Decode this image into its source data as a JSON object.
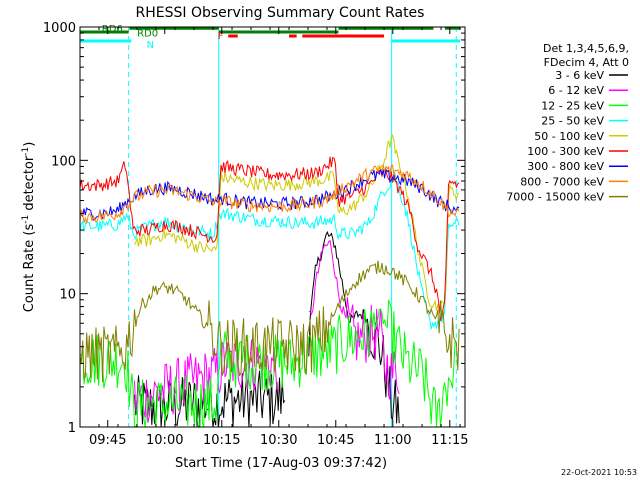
{
  "chart_data": {
    "type": "line",
    "title": "RHESSI Observing Summary Count Rates",
    "xlabel": "Start Time (17-Aug-03 09:37:42)",
    "ylabel_pre": "Count Rate (s",
    "ylabel_sup1": "-1",
    "ylabel_mid": " detector",
    "ylabel_sup2": "-1",
    "ylabel_post": ")",
    "timestamp": "22-Oct-2021 10:53",
    "x_unit": "minutes after 09:37:42",
    "xlim": [
      0,
      101.3
    ],
    "ylim": [
      1,
      1000
    ],
    "y_scale": "log",
    "x_ticks": [
      {
        "t": 7.3,
        "label": "09:45"
      },
      {
        "t": 22.3,
        "label": "10:00"
      },
      {
        "t": 37.3,
        "label": "10:15"
      },
      {
        "t": 52.3,
        "label": "10:30"
      },
      {
        "t": 67.3,
        "label": "10:45"
      },
      {
        "t": 82.3,
        "label": "11:00"
      },
      {
        "t": 97.3,
        "label": "11:15"
      }
    ],
    "y_ticks": [
      {
        "v": 1,
        "label": "1"
      },
      {
        "v": 10,
        "label": "10"
      },
      {
        "v": 100,
        "label": "100"
      },
      {
        "v": 1000,
        "label": "1000"
      }
    ],
    "legend": {
      "placement": "right",
      "header": [
        "Det 1,3,4,5,6,9,",
        "FDecim 4, Att 0"
      ]
    },
    "series": [
      {
        "name": "3 - 6 keV",
        "color": "#000000",
        "points": [
          [
            0,
            null
          ],
          [
            13.5,
            null
          ],
          [
            14,
            1.5
          ],
          [
            20,
            1.4
          ],
          [
            30,
            1.5
          ],
          [
            36,
            1.5
          ],
          [
            39,
            1.6
          ],
          [
            45,
            1.6
          ],
          [
            52,
            1.6
          ],
          [
            54,
            1.7
          ],
          [
            56,
            null
          ],
          [
            60,
            5
          ],
          [
            62,
            15
          ],
          [
            65,
            28
          ],
          [
            67,
            24
          ],
          [
            69,
            12
          ],
          [
            71,
            6
          ],
          [
            73,
            7
          ],
          [
            75,
            7
          ],
          [
            77,
            5
          ],
          [
            79,
            4
          ],
          [
            80,
            3
          ],
          [
            82,
            1.5
          ],
          [
            84,
            1.3
          ],
          [
            86,
            null
          ]
        ]
      },
      {
        "name": "6 - 12 keV",
        "color": "#ff00ff",
        "points": [
          [
            0,
            null
          ],
          [
            13.5,
            null
          ],
          [
            14,
            1.6
          ],
          [
            36,
            2.5
          ],
          [
            38,
            3
          ],
          [
            46,
            3
          ],
          [
            52,
            3
          ],
          [
            56,
            null
          ],
          [
            60,
            4
          ],
          [
            62,
            12
          ],
          [
            64,
            22
          ],
          [
            66,
            24
          ],
          [
            68,
            10
          ],
          [
            70,
            6
          ],
          [
            73,
            4.5
          ],
          [
            76,
            5
          ],
          [
            79,
            5
          ],
          [
            80,
            3
          ],
          [
            82,
            2.5
          ],
          [
            84,
            2.7
          ],
          [
            86,
            null
          ]
        ]
      },
      {
        "name": "12 - 25 keV",
        "color": "#00ff00",
        "points": [
          [
            0,
            3.2
          ],
          [
            12,
            3.2
          ],
          [
            14,
            1.4
          ],
          [
            24,
            1.5
          ],
          [
            36,
            1.5
          ],
          [
            37,
            3.5
          ],
          [
            40,
            3.2
          ],
          [
            56,
            3
          ],
          [
            60,
            3.5
          ],
          [
            64,
            3.5
          ],
          [
            70,
            4.5
          ],
          [
            76,
            5
          ],
          [
            79,
            7
          ],
          [
            82,
            5
          ],
          [
            86,
            3
          ],
          [
            90,
            2.5
          ],
          [
            94,
            1.1
          ],
          [
            96,
            2
          ],
          [
            99,
            3
          ]
        ]
      },
      {
        "name": "25 - 50 keV",
        "color": "#00ffff",
        "points": [
          [
            0,
            32
          ],
          [
            6,
            32
          ],
          [
            10,
            33
          ],
          [
            12,
            38
          ],
          [
            13,
            35
          ],
          [
            14,
            28
          ],
          [
            18,
            32
          ],
          [
            22,
            35
          ],
          [
            25,
            33
          ],
          [
            30,
            30
          ],
          [
            35,
            28
          ],
          [
            37,
            40
          ],
          [
            40,
            39
          ],
          [
            46,
            36
          ],
          [
            52,
            35
          ],
          [
            57,
            34
          ],
          [
            62,
            34
          ],
          [
            67,
            36
          ],
          [
            68,
            28
          ],
          [
            72,
            28
          ],
          [
            76,
            34
          ],
          [
            80,
            60
          ],
          [
            83,
            75
          ],
          [
            86,
            40
          ],
          [
            88,
            20
          ],
          [
            90,
            10
          ],
          [
            92,
            6
          ],
          [
            94,
            6
          ],
          [
            96,
            7
          ],
          [
            97,
            33
          ],
          [
            100,
            33
          ]
        ]
      },
      {
        "name": "50 - 100 keV",
        "color": "#cccc00",
        "points": [
          [
            14,
            25
          ],
          [
            18,
            25
          ],
          [
            22,
            28
          ],
          [
            26,
            26
          ],
          [
            32,
            22
          ],
          [
            36,
            21
          ],
          [
            37,
            75
          ],
          [
            42,
            70
          ],
          [
            50,
            65
          ],
          [
            56,
            66
          ],
          [
            62,
            70
          ],
          [
            67,
            75
          ],
          [
            68,
            40
          ],
          [
            72,
            45
          ],
          [
            76,
            60
          ],
          [
            80,
            100
          ],
          [
            82,
            150
          ],
          [
            84,
            90
          ],
          [
            86,
            60
          ],
          [
            88,
            30
          ],
          [
            90,
            15
          ],
          [
            92,
            9
          ],
          [
            94,
            8
          ],
          [
            96,
            8
          ],
          [
            97,
            60
          ],
          [
            100,
            55
          ]
        ]
      },
      {
        "name": "100 - 300 keV",
        "color": "#ff0000",
        "points": [
          [
            0,
            65
          ],
          [
            5,
            65
          ],
          [
            10,
            70
          ],
          [
            12,
            95
          ],
          [
            14,
            30
          ],
          [
            18,
            30
          ],
          [
            22,
            33
          ],
          [
            26,
            32
          ],
          [
            32,
            28
          ],
          [
            36,
            26
          ],
          [
            37,
            90
          ],
          [
            42,
            85
          ],
          [
            50,
            78
          ],
          [
            56,
            78
          ],
          [
            62,
            80
          ],
          [
            67,
            100
          ],
          [
            68,
            50
          ],
          [
            72,
            55
          ],
          [
            76,
            65
          ],
          [
            79,
            80
          ],
          [
            82,
            75
          ],
          [
            85,
            55
          ],
          [
            87,
            40
          ],
          [
            89,
            22
          ],
          [
            92,
            15
          ],
          [
            94,
            10
          ],
          [
            95,
            6
          ],
          [
            96,
            8
          ],
          [
            97,
            70
          ],
          [
            100,
            65
          ]
        ]
      },
      {
        "name": "300 - 800 keV",
        "color": "#0000ff",
        "points": [
          [
            0,
            40
          ],
          [
            6,
            40
          ],
          [
            10,
            42
          ],
          [
            12,
            48
          ],
          [
            14,
            53
          ],
          [
            18,
            60
          ],
          [
            22,
            62
          ],
          [
            26,
            60
          ],
          [
            32,
            54
          ],
          [
            36,
            50
          ],
          [
            37,
            52
          ],
          [
            44,
            48
          ],
          [
            52,
            47
          ],
          [
            58,
            48
          ],
          [
            64,
            52
          ],
          [
            67,
            55
          ],
          [
            68,
            58
          ],
          [
            72,
            65
          ],
          [
            76,
            75
          ],
          [
            79,
            78
          ],
          [
            82,
            75
          ],
          [
            86,
            70
          ],
          [
            90,
            62
          ],
          [
            94,
            50
          ],
          [
            97,
            45
          ],
          [
            100,
            40
          ]
        ]
      },
      {
        "name": "800 - 7000 keV",
        "color": "#ff8000",
        "points": [
          [
            0,
            38
          ],
          [
            6,
            38
          ],
          [
            10,
            40
          ],
          [
            12,
            46
          ],
          [
            14,
            52
          ],
          [
            18,
            58
          ],
          [
            22,
            60
          ],
          [
            26,
            58
          ],
          [
            32,
            52
          ],
          [
            36,
            48
          ],
          [
            37,
            50
          ],
          [
            44,
            46
          ],
          [
            52,
            45
          ],
          [
            58,
            46
          ],
          [
            64,
            50
          ],
          [
            67,
            55
          ],
          [
            68,
            60
          ],
          [
            72,
            68
          ],
          [
            76,
            80
          ],
          [
            79,
            85
          ],
          [
            82,
            85
          ],
          [
            86,
            78
          ],
          [
            90,
            65
          ],
          [
            94,
            52
          ],
          [
            97,
            42
          ],
          [
            100,
            38
          ]
        ]
      },
      {
        "name": "7000 - 15000 keV",
        "color": "#808000",
        "points": [
          [
            0,
            3.5
          ],
          [
            10,
            3.5
          ],
          [
            12,
            4
          ],
          [
            14,
            5.5
          ],
          [
            16,
            8
          ],
          [
            20,
            11
          ],
          [
            24,
            11
          ],
          [
            28,
            9
          ],
          [
            32,
            6.5
          ],
          [
            35,
            5
          ],
          [
            37,
            4
          ],
          [
            44,
            4
          ],
          [
            50,
            4
          ],
          [
            56,
            4
          ],
          [
            60,
            4
          ],
          [
            64,
            5
          ],
          [
            68,
            8
          ],
          [
            72,
            12
          ],
          [
            76,
            15
          ],
          [
            79,
            16
          ],
          [
            82,
            15
          ],
          [
            86,
            12
          ],
          [
            90,
            9
          ],
          [
            94,
            6
          ],
          [
            97,
            4.5
          ],
          [
            100,
            4
          ]
        ]
      }
    ],
    "vertical_lines": [
      {
        "t": 0,
        "style": "solid"
      },
      {
        "t": 12.8,
        "style": "dashed"
      },
      {
        "t": 36.5,
        "style": "solid"
      },
      {
        "t": 82,
        "style": "solid"
      },
      {
        "t": 99,
        "style": "dashed"
      }
    ],
    "status_bars": [
      {
        "color": "#00ffff",
        "level": 7,
        "segments": [
          [
            0,
            13.5
          ],
          [
            82,
            100
          ]
        ]
      },
      {
        "color": "#ff0000",
        "level": 4.5,
        "segments": [
          [
            39,
            41.5
          ],
          [
            55,
            57
          ],
          [
            58.5,
            80
          ]
        ]
      },
      {
        "color": "#008000",
        "level": 2.5,
        "segments": [
          [
            0,
            12.8
          ],
          [
            36.5,
            68
          ]
        ]
      },
      {
        "color": "#008000",
        "level": 0.6,
        "segments": [
          [
            13,
            36.5
          ],
          [
            68,
            93
          ],
          [
            96,
            100
          ]
        ]
      }
    ],
    "bar_labels": [
      {
        "text": "N",
        "t": 18.5,
        "level": 8.6,
        "color": "#00ffff"
      },
      {
        "text": "F",
        "t": 37,
        "level": 4.0,
        "color": "#ff0000"
      },
      {
        "text": "RD0",
        "t": 17.8,
        "level": 2.8,
        "color": "#008000"
      },
      {
        "text": "RD6",
        "t": 8.5,
        "level": 0.6,
        "color": "#008000"
      }
    ]
  }
}
